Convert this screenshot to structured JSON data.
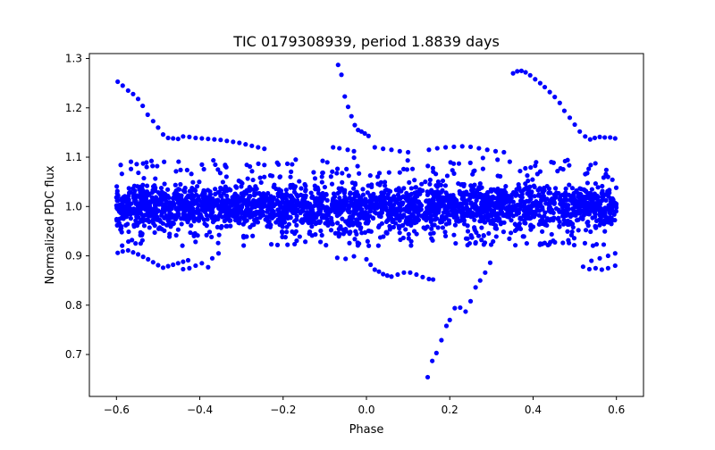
{
  "chart_data": {
    "type": "scatter",
    "title": "TIC 0179308939, period 1.8839 days",
    "xlabel": "Phase",
    "ylabel": "Normalized PDC flux",
    "xlim": [
      -0.665,
      0.665
    ],
    "ylim": [
      0.615,
      1.31
    ],
    "xticks": [
      -0.6,
      -0.4,
      -0.2,
      0.0,
      0.2,
      0.4,
      0.6
    ],
    "xtick_labels": [
      "−0.6",
      "−0.4",
      "−0.2",
      "0.0",
      "0.2",
      "0.4",
      "0.6"
    ],
    "yticks": [
      0.7,
      0.8,
      0.9,
      1.0,
      1.1,
      1.2,
      1.3
    ],
    "ytick_labels": [
      "0.7",
      "0.8",
      "0.9",
      "1.0",
      "1.1",
      "1.2",
      "1.3"
    ],
    "grid": false,
    "marker_color": "#0000ff",
    "series": [
      {
        "points": [
          [
            -0.597,
            1.253
          ],
          [
            -0.585,
            1.245
          ],
          [
            -0.572,
            1.235
          ],
          [
            -0.56,
            1.228
          ],
          [
            -0.548,
            1.218
          ],
          [
            -0.537,
            1.204
          ],
          [
            -0.525,
            1.186
          ],
          [
            -0.512,
            1.173
          ],
          [
            -0.5,
            1.16
          ],
          [
            -0.488,
            1.146
          ],
          [
            -0.476,
            1.139
          ],
          [
            -0.464,
            1.138
          ],
          [
            -0.452,
            1.137
          ],
          [
            -0.44,
            1.142
          ],
          [
            -0.425,
            1.141
          ],
          [
            -0.41,
            1.139
          ],
          [
            -0.395,
            1.138
          ],
          [
            -0.38,
            1.137
          ],
          [
            -0.365,
            1.136
          ],
          [
            -0.35,
            1.135
          ],
          [
            -0.335,
            1.133
          ],
          [
            -0.32,
            1.131
          ],
          [
            -0.305,
            1.129
          ],
          [
            -0.29,
            1.126
          ],
          [
            -0.275,
            1.123
          ],
          [
            -0.26,
            1.12
          ],
          [
            -0.245,
            1.117
          ],
          [
            -0.597,
            0.906
          ],
          [
            -0.585,
            0.909
          ],
          [
            -0.572,
            0.911
          ],
          [
            -0.56,
            0.907
          ],
          [
            -0.548,
            0.903
          ],
          [
            -0.536,
            0.898
          ],
          [
            -0.524,
            0.893
          ],
          [
            -0.512,
            0.887
          ],
          [
            -0.5,
            0.881
          ],
          [
            -0.488,
            0.876
          ],
          [
            -0.476,
            0.879
          ],
          [
            -0.464,
            0.882
          ],
          [
            -0.452,
            0.885
          ],
          [
            -0.44,
            0.888
          ],
          [
            -0.428,
            0.891
          ],
          [
            -0.44,
            0.873
          ],
          [
            -0.425,
            0.875
          ],
          [
            -0.41,
            0.88
          ],
          [
            -0.395,
            0.885
          ],
          [
            -0.38,
            0.877
          ],
          [
            -0.37,
            0.895
          ],
          [
            -0.355,
            0.905
          ],
          [
            -0.068,
            1.287
          ],
          [
            -0.06,
            1.267
          ],
          [
            -0.052,
            1.223
          ],
          [
            -0.044,
            1.202
          ],
          [
            -0.036,
            1.183
          ],
          [
            -0.028,
            1.165
          ],
          [
            -0.02,
            1.155
          ],
          [
            -0.012,
            1.152
          ],
          [
            -0.004,
            1.148
          ],
          [
            0.005,
            1.143
          ],
          [
            -0.08,
            1.12
          ],
          [
            -0.065,
            1.118
          ],
          [
            -0.045,
            1.115
          ],
          [
            -0.03,
            1.112
          ],
          [
            0.02,
            1.12
          ],
          [
            0.04,
            1.117
          ],
          [
            0.06,
            1.115
          ],
          [
            0.08,
            1.112
          ],
          [
            0.1,
            1.11
          ],
          [
            0.15,
            1.115
          ],
          [
            0.17,
            1.118
          ],
          [
            0.19,
            1.12
          ],
          [
            0.21,
            1.121
          ],
          [
            0.23,
            1.122
          ],
          [
            0.25,
            1.121
          ],
          [
            0.27,
            1.118
          ],
          [
            0.29,
            1.115
          ],
          [
            0.31,
            1.112
          ],
          [
            0.33,
            1.11
          ],
          [
            -0.07,
            0.896
          ],
          [
            -0.05,
            0.894
          ],
          [
            -0.03,
            0.899
          ],
          [
            0.0,
            0.893
          ],
          [
            0.01,
            0.882
          ],
          [
            0.02,
            0.872
          ],
          [
            0.03,
            0.868
          ],
          [
            0.04,
            0.863
          ],
          [
            0.05,
            0.86
          ],
          [
            0.06,
            0.858
          ],
          [
            0.075,
            0.862
          ],
          [
            0.09,
            0.866
          ],
          [
            0.105,
            0.866
          ],
          [
            0.12,
            0.862
          ],
          [
            0.135,
            0.857
          ],
          [
            0.15,
            0.853
          ],
          [
            0.16,
            0.852
          ],
          [
            0.147,
            0.654
          ],
          [
            0.158,
            0.687
          ],
          [
            0.168,
            0.703
          ],
          [
            0.18,
            0.729
          ],
          [
            0.192,
            0.758
          ],
          [
            0.2,
            0.77
          ],
          [
            0.212,
            0.794
          ],
          [
            0.225,
            0.795
          ],
          [
            0.238,
            0.787
          ],
          [
            0.25,
            0.808
          ],
          [
            0.262,
            0.836
          ],
          [
            0.273,
            0.85
          ],
          [
            0.285,
            0.866
          ],
          [
            0.297,
            0.886
          ],
          [
            0.352,
            1.27
          ],
          [
            0.362,
            1.274
          ],
          [
            0.372,
            1.275
          ],
          [
            0.382,
            1.272
          ],
          [
            0.393,
            1.266
          ],
          [
            0.405,
            1.258
          ],
          [
            0.417,
            1.25
          ],
          [
            0.428,
            1.242
          ],
          [
            0.44,
            1.232
          ],
          [
            0.452,
            1.222
          ],
          [
            0.464,
            1.21
          ],
          [
            0.475,
            1.194
          ],
          [
            0.488,
            1.18
          ],
          [
            0.5,
            1.166
          ],
          [
            0.512,
            1.152
          ],
          [
            0.525,
            1.142
          ],
          [
            0.537,
            1.136
          ],
          [
            0.548,
            1.139
          ],
          [
            0.56,
            1.141
          ],
          [
            0.572,
            1.14
          ],
          [
            0.585,
            1.14
          ],
          [
            0.597,
            1.138
          ],
          [
            0.52,
            0.878
          ],
          [
            0.535,
            0.873
          ],
          [
            0.55,
            0.875
          ],
          [
            0.565,
            0.872
          ],
          [
            0.58,
            0.875
          ],
          [
            0.597,
            0.88
          ],
          [
            0.54,
            0.89
          ],
          [
            0.56,
            0.895
          ],
          [
            0.58,
            0.9
          ],
          [
            0.597,
            0.905
          ]
        ]
      }
    ]
  }
}
